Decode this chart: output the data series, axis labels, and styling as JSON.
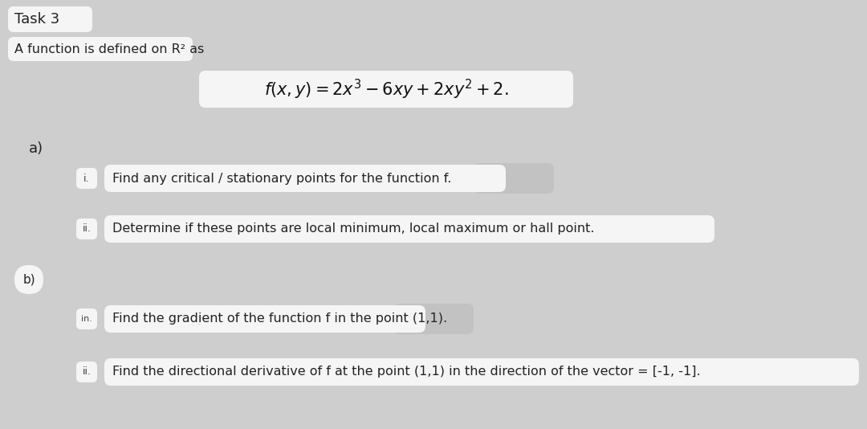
{
  "bg_color": "#cecece",
  "white_color": "#f5f5f5",
  "mid_color": "#c2c2c2",
  "title": "Task 3",
  "subtitle": "A function is defined on R² as",
  "formula": "$f(x, y) = 2x^3 - 6xy + 2xy^2 + 2.$",
  "a_label": "a)",
  "b_label": "b)",
  "items": [
    {
      "num": "i.",
      "text": "Find any critical / stationary points for the function f.",
      "wide": false
    },
    {
      "num": "ii.",
      "text": "Determine if these points are local minimum, local maximum or hall point.",
      "wide": true
    },
    {
      "num": "in.",
      "text": "Find the gradient of the function f in the point (1,1).",
      "wide": false
    },
    {
      "num": "ii.",
      "text": "Find the directional derivative of f at the point (1,1) in the direction of the vector = [-1, -1].",
      "wide": true
    }
  ]
}
